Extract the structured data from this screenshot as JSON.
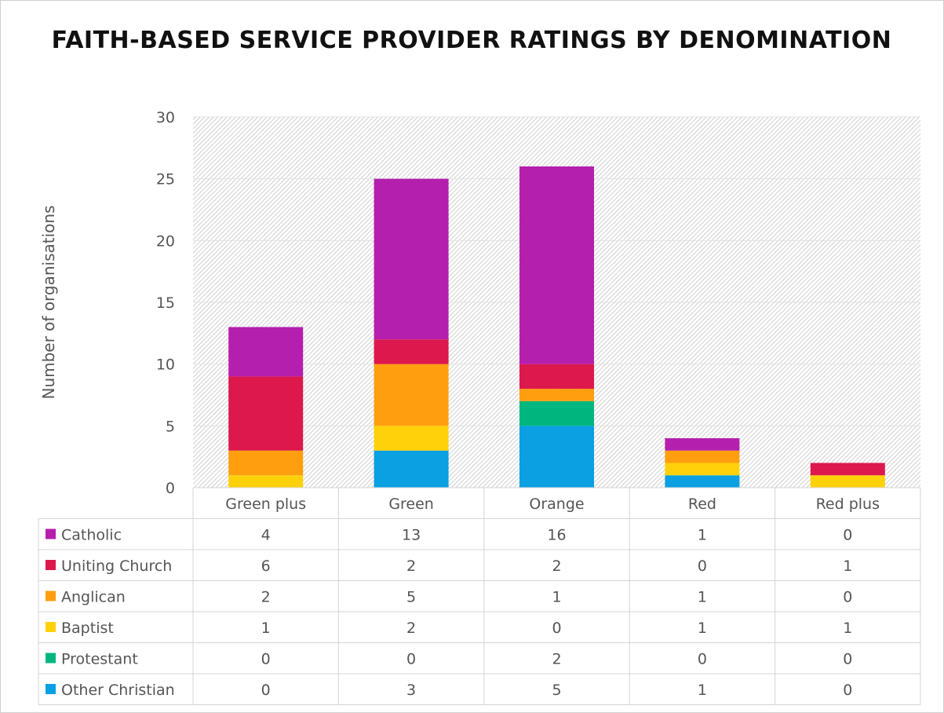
{
  "chart_data": {
    "type": "bar",
    "stacked": true,
    "title": "FAITH-BASED SERVICE PROVIDER RATINGS BY DENOMINATION",
    "xlabel": "",
    "ylabel": "Number of organisations",
    "ylim": [
      0,
      30
    ],
    "yticks": [
      "0",
      "5",
      "10",
      "15",
      "20",
      "25",
      "30"
    ],
    "grid": true,
    "legend": "data-table",
    "categories": [
      "Green plus",
      "Green",
      "Orange",
      "Red",
      "Red plus"
    ],
    "series": [
      {
        "name": "Other Christian",
        "color": "#0aa0e2",
        "values": [
          0,
          3,
          5,
          1,
          0
        ]
      },
      {
        "name": "Protestant",
        "color": "#00b67f",
        "values": [
          0,
          0,
          2,
          0,
          0
        ]
      },
      {
        "name": "Baptist",
        "color": "#ffd10a",
        "values": [
          1,
          2,
          0,
          1,
          1
        ]
      },
      {
        "name": "Anglican",
        "color": "#ff9f0f",
        "values": [
          2,
          5,
          1,
          1,
          0
        ]
      },
      {
        "name": "Uniting Church",
        "color": "#dc184d",
        "values": [
          6,
          2,
          2,
          0,
          1
        ]
      },
      {
        "name": "Catholic",
        "color": "#b41fad",
        "values": [
          4,
          13,
          16,
          1,
          0
        ]
      }
    ],
    "table_order": [
      "Catholic",
      "Uniting Church",
      "Anglican",
      "Baptist",
      "Protestant",
      "Other Christian"
    ],
    "background_pattern": "diagonal-hatch"
  }
}
